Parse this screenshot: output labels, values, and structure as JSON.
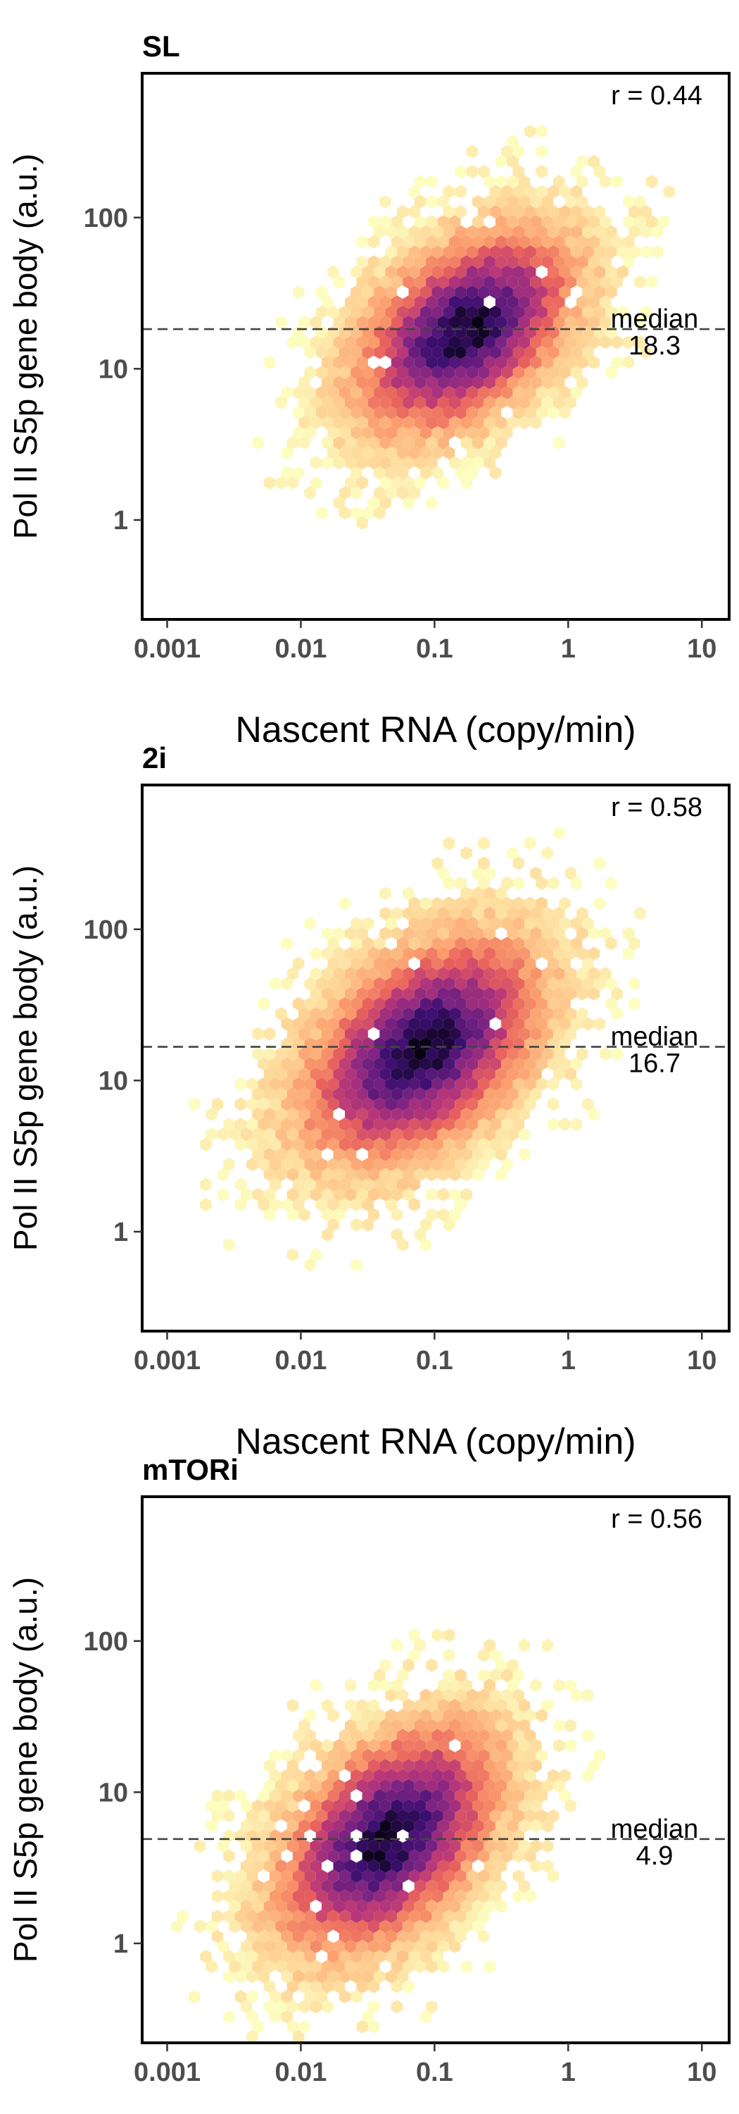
{
  "figure": {
    "ylabel": "Pol II S5p gene body (a.u.)",
    "xlabel": "Nascent RNA (copy/min)",
    "colors": {
      "frame": "#000000",
      "ticks": "#4d4d4d",
      "median_line": "#444444",
      "density_ramp": [
        "#fcfdbf",
        "#fed395",
        "#fb9e6e",
        "#e8615d",
        "#b63679",
        "#7e2482",
        "#3b0f70",
        "#000004"
      ]
    }
  },
  "chart_data": [
    {
      "type": "heatmap",
      "subtype": "hexbin-density",
      "title": "SL",
      "xlabel": "Nascent RNA (copy/min)",
      "ylabel": "Pol II S5p gene body (a.u.)",
      "x_scale": "log10",
      "y_scale": "log10",
      "xlim": [
        0.00065,
        16
      ],
      "ylim": [
        0.22,
        900
      ],
      "x_ticks": [
        {
          "value": 0.001,
          "label": "0.001"
        },
        {
          "value": 0.01,
          "label": "0.01"
        },
        {
          "value": 0.1,
          "label": "0.1"
        },
        {
          "value": 1,
          "label": "1"
        },
        {
          "value": 10,
          "label": "10"
        }
      ],
      "y_ticks": [
        {
          "value": 1,
          "label": "1"
        },
        {
          "value": 10,
          "label": "10"
        },
        {
          "value": 100,
          "label": "100"
        }
      ],
      "correlation_label": "r = 0.44",
      "median": {
        "value": 18.3,
        "label": "median",
        "value_label": "18.3"
      },
      "density_center": {
        "x": 0.17,
        "y": 18
      },
      "density_spread_log10": {
        "x": 0.55,
        "y": 0.45
      },
      "grid": false,
      "legend": "none"
    },
    {
      "type": "heatmap",
      "subtype": "hexbin-density",
      "title": "2i",
      "xlabel": "Nascent RNA (copy/min)",
      "ylabel": "Pol II S5p gene body (a.u.)",
      "x_scale": "log10",
      "y_scale": "log10",
      "xlim": [
        0.00065,
        16
      ],
      "ylim": [
        0.22,
        900
      ],
      "x_ticks": [
        {
          "value": 0.001,
          "label": "0.001"
        },
        {
          "value": 0.01,
          "label": "0.01"
        },
        {
          "value": 0.1,
          "label": "0.1"
        },
        {
          "value": 1,
          "label": "1"
        },
        {
          "value": 10,
          "label": "10"
        }
      ],
      "y_ticks": [
        {
          "value": 1,
          "label": "1"
        },
        {
          "value": 10,
          "label": "10"
        },
        {
          "value": 100,
          "label": "100"
        }
      ],
      "correlation_label": "r = 0.58",
      "median": {
        "value": 16.7,
        "label": "median",
        "value_label": "16.7"
      },
      "density_center": {
        "x": 0.08,
        "y": 16
      },
      "density_spread_log10": {
        "x": 0.6,
        "y": 0.5
      },
      "grid": false,
      "legend": "none"
    },
    {
      "type": "heatmap",
      "subtype": "hexbin-density",
      "title": "mTORi",
      "xlabel": "Nascent RNA (copy/min)",
      "ylabel": "Pol II S5p gene body (a.u.)",
      "x_scale": "log10",
      "y_scale": "log10",
      "xlim": [
        0.00065,
        16
      ],
      "ylim": [
        0.22,
        900
      ],
      "x_ticks": [
        {
          "value": 0.001,
          "label": "0.001"
        },
        {
          "value": 0.01,
          "label": "0.01"
        },
        {
          "value": 0.1,
          "label": "0.1"
        },
        {
          "value": 1,
          "label": "1"
        },
        {
          "value": 10,
          "label": "10"
        }
      ],
      "y_ticks": [
        {
          "value": 1,
          "label": "1"
        },
        {
          "value": 10,
          "label": "10"
        },
        {
          "value": 100,
          "label": "100"
        }
      ],
      "correlation_label": "r = 0.56",
      "median": {
        "value": 4.9,
        "label": "median",
        "value_label": "4.9"
      },
      "density_center": {
        "x": 0.045,
        "y": 4.9
      },
      "density_spread_log10": {
        "x": 0.55,
        "y": 0.5
      },
      "grid": false,
      "legend": "none"
    }
  ]
}
